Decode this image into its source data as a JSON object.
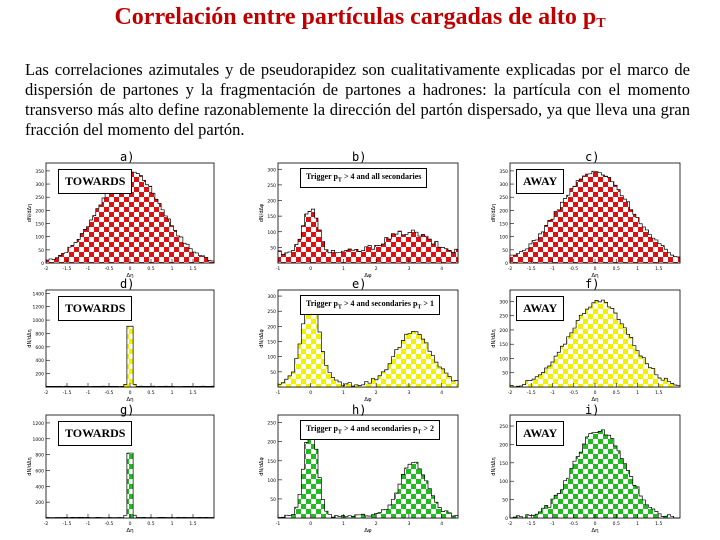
{
  "slide": {
    "title_main": "Correlación entre partículas cargadas de alto p",
    "title_sub": "T",
    "body": "Las correlaciones azimutales y de pseudorapidez son cualitativamente explicadas por el marco de dispersión de partones y la fragmentación de partones a hadrones: la partícula con el momento transverso más alto define razonablemente la dirección del partón dispersado, ya que lleva una gran fracción del momento del partón."
  },
  "colors": {
    "title": "#c00000",
    "red_check": "#dd1111",
    "yellow_check": "#f2f200",
    "green_check": "#22bb22"
  },
  "panels": [
    {
      "id": "a",
      "letter": "a)",
      "box_text": "TOWARDS",
      "xlabel": "Δη",
      "ylabel": "dN/dΔη",
      "chart_data": {
        "type": "area",
        "shape": "gauss",
        "center": 0,
        "sigma": 0.75,
        "peak": 350,
        "base": 0,
        "xlim": [
          -2,
          2
        ],
        "ylim": [
          0,
          380
        ],
        "yticks": [
          0,
          50,
          100,
          150,
          200,
          250,
          300,
          350
        ],
        "xticks": [
          -2,
          -1.5,
          -1,
          -0.5,
          0,
          0.5,
          1,
          1.5
        ],
        "fill": "red"
      }
    },
    {
      "id": "b",
      "letter": "b)",
      "box_text": "Trigger p",
      "box_sub": "T",
      "box_rest": " > 4 and all secondaries",
      "xlabel": "Δφ",
      "ylabel": "dN/dΔφ",
      "chart_data": {
        "type": "area",
        "shape": "b",
        "ylim": [
          0,
          320
        ],
        "yticks": [
          50,
          100,
          150,
          200,
          250,
          300
        ],
        "xlim": [
          -1,
          4.5
        ],
        "xticks": [
          -1,
          0,
          1,
          2,
          3,
          4
        ],
        "fill": "red"
      }
    },
    {
      "id": "c",
      "letter": "c)",
      "box_text": "AWAY",
      "xlabel": "Δη",
      "ylabel": "dN/dΔη",
      "chart_data": {
        "type": "area",
        "shape": "gauss",
        "center": 0,
        "sigma": 0.85,
        "peak": 345,
        "base": 0,
        "xlim": [
          -2,
          2
        ],
        "ylim": [
          0,
          380
        ],
        "yticks": [
          0,
          50,
          100,
          150,
          200,
          250,
          300,
          350
        ],
        "xticks": [
          -2,
          -1.5,
          -1,
          -0.5,
          0,
          0.5,
          1,
          1.5
        ],
        "fill": "red"
      }
    },
    {
      "id": "d",
      "letter": "d)",
      "box_text": "TOWARDS",
      "xlabel": "Δη",
      "ylabel": "dN/dΔη",
      "chart_data": {
        "type": "area",
        "shape": "spike",
        "center": 0,
        "sigma": 0.04,
        "peak": 1380,
        "base": 8,
        "xlim": [
          -2,
          2
        ],
        "ylim": [
          0,
          1450
        ],
        "yticks": [
          200,
          400,
          600,
          800,
          1000,
          1200,
          1400
        ],
        "xticks": [
          -2,
          -1.5,
          -1,
          -0.5,
          0,
          0.5,
          1,
          1.5
        ],
        "fill": "yellow"
      }
    },
    {
      "id": "e",
      "letter": "e)",
      "box_text": "Trigger p",
      "box_sub": "T",
      "box_rest": " > 4 and secondaries p",
      "box_sub2": "T",
      "box_rest2": " > 1",
      "xlabel": "Δφ",
      "ylabel": "dN/dΔφ",
      "chart_data": {
        "type": "area",
        "shape": "e",
        "ylim": [
          0,
          320
        ],
        "yticks": [
          50,
          100,
          150,
          200,
          250,
          300
        ],
        "xlim": [
          -1,
          4.5
        ],
        "xticks": [
          -1,
          0,
          1,
          2,
          3,
          4
        ],
        "fill": "yellow"
      }
    },
    {
      "id": "f",
      "letter": "f)",
      "box_text": "AWAY",
      "xlabel": "Δη",
      "ylabel": "dN/dΔη",
      "chart_data": {
        "type": "area",
        "shape": "gauss",
        "center": 0.1,
        "sigma": 0.7,
        "peak": 300,
        "base": 0,
        "xlim": [
          -2,
          2
        ],
        "ylim": [
          0,
          340
        ],
        "yticks": [
          50,
          100,
          150,
          200,
          250,
          300
        ],
        "xticks": [
          -2,
          -1.5,
          -1,
          -0.5,
          0,
          0.5,
          1,
          1.5
        ],
        "fill": "yellow"
      }
    },
    {
      "id": "g",
      "letter": "g)",
      "box_text": "TOWARDS",
      "xlabel": "Δη",
      "ylabel": "dN/dΔη",
      "chart_data": {
        "type": "area",
        "shape": "spike",
        "center": 0,
        "sigma": 0.04,
        "peak": 1250,
        "base": 5,
        "xlim": [
          -2,
          2
        ],
        "ylim": [
          0,
          1300
        ],
        "yticks": [
          200,
          400,
          600,
          800,
          1000,
          1200
        ],
        "xticks": [
          -2,
          -1.5,
          -1,
          -0.5,
          0,
          0.5,
          1,
          1.5
        ],
        "fill": "green"
      }
    },
    {
      "id": "h",
      "letter": "h)",
      "box_text": "Trigger p",
      "box_sub": "T",
      "box_rest": " > 4 and secondaries p",
      "box_sub2": "T",
      "box_rest2": " > 2",
      "xlabel": "Δφ",
      "ylabel": "dN/dΔφ",
      "chart_data": {
        "type": "area",
        "shape": "h",
        "ylim": [
          0,
          270
        ],
        "yticks": [
          50,
          100,
          150,
          200,
          250
        ],
        "xlim": [
          -1,
          4.5
        ],
        "xticks": [
          -1,
          0,
          1,
          2,
          3,
          4
        ],
        "fill": "green"
      }
    },
    {
      "id": "i",
      "letter": "i)",
      "box_text": "AWAY",
      "xlabel": "Δη",
      "ylabel": "dN/dΔη",
      "chart_data": {
        "type": "area",
        "shape": "gauss",
        "center": 0.1,
        "sigma": 0.6,
        "peak": 240,
        "base": 0,
        "xlim": [
          -2,
          2
        ],
        "ylim": [
          0,
          280
        ],
        "yticks": [
          0,
          50,
          100,
          150,
          200,
          250
        ],
        "xticks": [
          -2,
          -1.5,
          -1,
          -0.5,
          0,
          0.5,
          1,
          1.5
        ],
        "fill": "green"
      }
    }
  ]
}
